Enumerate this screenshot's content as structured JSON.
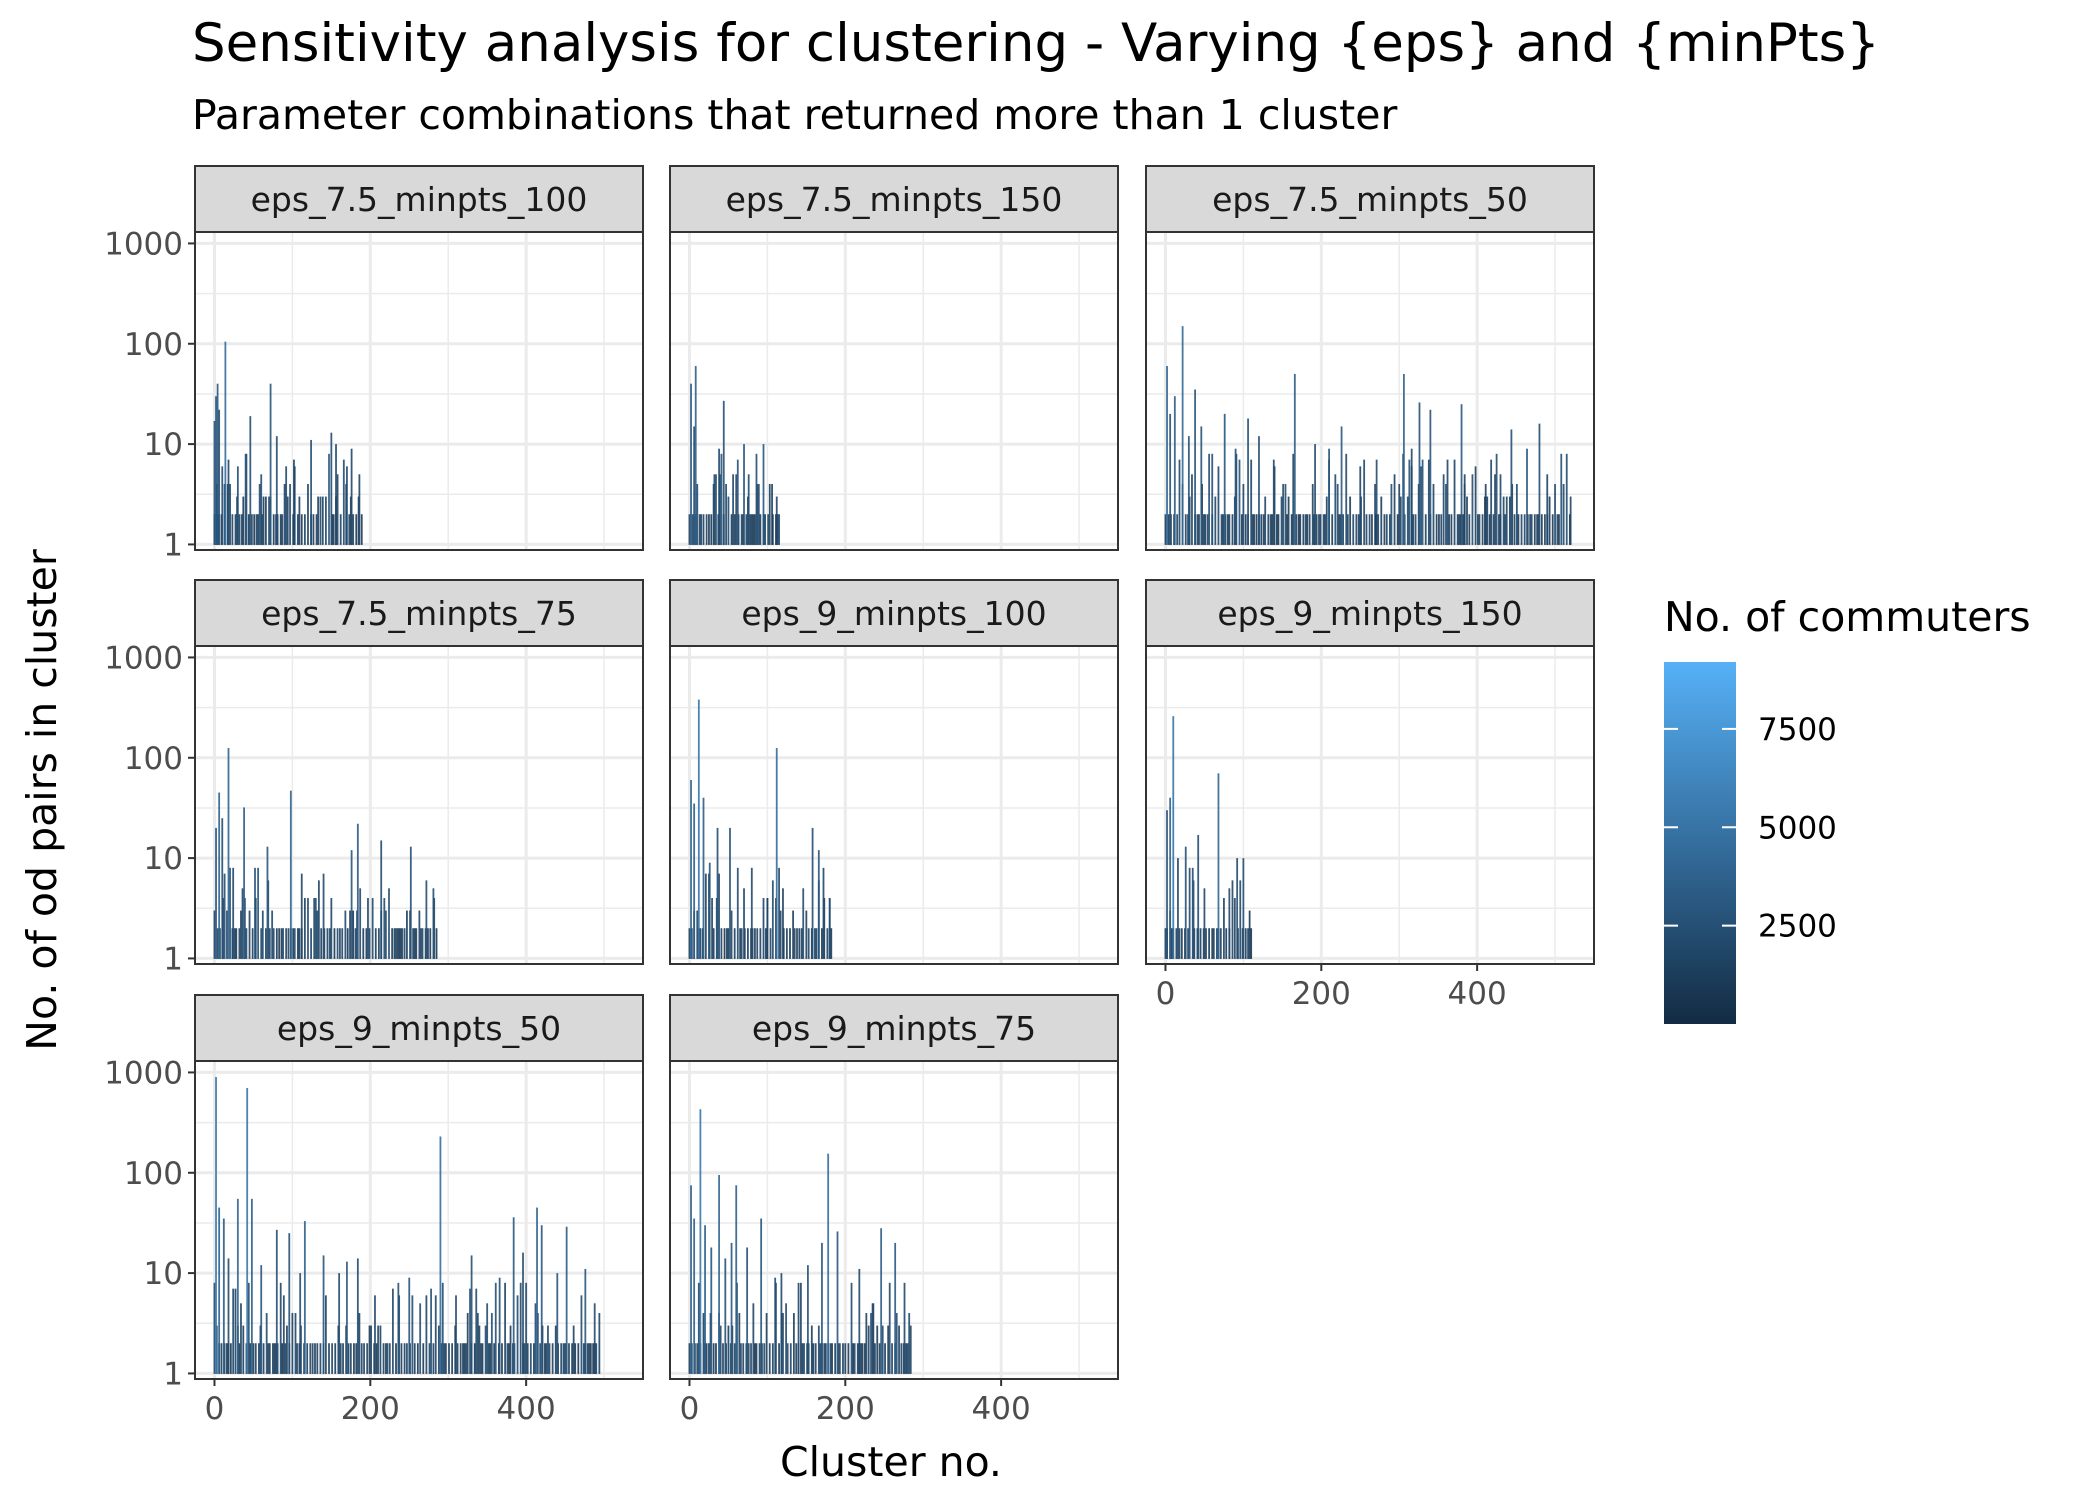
{
  "chart_data": {
    "type": "bar",
    "title": "Sensitivity analysis for clustering - Varying {eps} and {minPts}",
    "subtitle": "Parameter combinations that returned more than 1 cluster",
    "xlabel": "Cluster no.",
    "ylabel": "No. of od pairs in cluster",
    "y_scale": "log10",
    "ylim": [
      0.88,
      1300
    ],
    "xlim": [
      -25,
      550
    ],
    "x_ticks": [
      0,
      200,
      400
    ],
    "y_ticks": [
      1,
      10,
      100,
      1000
    ],
    "y_tick_labels": [
      "1",
      "10",
      "100",
      "1000"
    ],
    "x_tick_labels": [
      "0",
      "200",
      "400"
    ],
    "grid": true,
    "facet_layout": {
      "ncol": 3,
      "nrow": 3
    },
    "legend": {
      "title": "No. of commuters",
      "placement": "right",
      "type": "colorbar",
      "range": [
        0,
        9200
      ],
      "ticks": [
        2500,
        5000,
        7500
      ],
      "tick_labels": [
        "2500",
        "5000",
        "7500"
      ],
      "low_color": "#132b43",
      "high_color": "#56b1f7"
    },
    "panels": [
      {
        "label": "eps_7.5_minpts_100",
        "clusters": 190,
        "peaks": [
          {
            "x": 0,
            "y": 17
          },
          {
            "x": 2,
            "y": 30
          },
          {
            "x": 4,
            "y": 40
          },
          {
            "x": 6,
            "y": 22
          },
          {
            "x": 10,
            "y": 6
          },
          {
            "x": 14,
            "y": 105
          },
          {
            "x": 18,
            "y": 7
          },
          {
            "x": 30,
            "y": 6
          },
          {
            "x": 40,
            "y": 8
          },
          {
            "x": 46,
            "y": 19
          },
          {
            "x": 60,
            "y": 5
          },
          {
            "x": 72,
            "y": 40
          },
          {
            "x": 80,
            "y": 12
          },
          {
            "x": 92,
            "y": 6
          },
          {
            "x": 102,
            "y": 7
          },
          {
            "x": 124,
            "y": 11
          },
          {
            "x": 150,
            "y": 13
          },
          {
            "x": 156,
            "y": 10
          },
          {
            "x": 170,
            "y": 6
          },
          {
            "x": 176,
            "y": 9
          },
          {
            "x": 186,
            "y": 5
          }
        ]
      },
      {
        "label": "eps_7.5_minpts_150",
        "clusters": 115,
        "peaks": [
          {
            "x": 2,
            "y": 40
          },
          {
            "x": 8,
            "y": 60
          },
          {
            "x": 6,
            "y": 15
          },
          {
            "x": 32,
            "y": 5
          },
          {
            "x": 38,
            "y": 9
          },
          {
            "x": 44,
            "y": 27
          },
          {
            "x": 56,
            "y": 5
          },
          {
            "x": 62,
            "y": 7
          },
          {
            "x": 70,
            "y": 10
          },
          {
            "x": 76,
            "y": 5
          },
          {
            "x": 86,
            "y": 8
          },
          {
            "x": 95,
            "y": 10
          },
          {
            "x": 106,
            "y": 4
          },
          {
            "x": 112,
            "y": 3
          }
        ]
      },
      {
        "label": "eps_7.5_minpts_50",
        "clusters": 520,
        "peaks": [
          {
            "x": 2,
            "y": 60
          },
          {
            "x": 6,
            "y": 20
          },
          {
            "x": 12,
            "y": 30
          },
          {
            "x": 22,
            "y": 150
          },
          {
            "x": 30,
            "y": 12
          },
          {
            "x": 38,
            "y": 35
          },
          {
            "x": 46,
            "y": 15
          },
          {
            "x": 60,
            "y": 8
          },
          {
            "x": 76,
            "y": 20
          },
          {
            "x": 90,
            "y": 9
          },
          {
            "x": 106,
            "y": 18
          },
          {
            "x": 120,
            "y": 12
          },
          {
            "x": 140,
            "y": 6
          },
          {
            "x": 166,
            "y": 50
          },
          {
            "x": 192,
            "y": 10
          },
          {
            "x": 210,
            "y": 9
          },
          {
            "x": 226,
            "y": 15
          },
          {
            "x": 250,
            "y": 6
          },
          {
            "x": 270,
            "y": 2
          },
          {
            "x": 306,
            "y": 50
          },
          {
            "x": 316,
            "y": 9
          },
          {
            "x": 326,
            "y": 26
          },
          {
            "x": 340,
            "y": 22
          },
          {
            "x": 380,
            "y": 25
          },
          {
            "x": 384,
            "y": 5
          },
          {
            "x": 410,
            "y": 3
          },
          {
            "x": 430,
            "y": 5
          },
          {
            "x": 444,
            "y": 14
          },
          {
            "x": 464,
            "y": 9
          },
          {
            "x": 480,
            "y": 16
          },
          {
            "x": 490,
            "y": 5
          },
          {
            "x": 520,
            "y": 3
          }
        ]
      },
      {
        "label": "eps_7.5_minpts_75",
        "clusters": 285,
        "peaks": [
          {
            "x": 2,
            "y": 20
          },
          {
            "x": 6,
            "y": 45
          },
          {
            "x": 10,
            "y": 25
          },
          {
            "x": 18,
            "y": 125
          },
          {
            "x": 24,
            "y": 8
          },
          {
            "x": 38,
            "y": 32
          },
          {
            "x": 52,
            "y": 8
          },
          {
            "x": 68,
            "y": 13
          },
          {
            "x": 98,
            "y": 47
          },
          {
            "x": 112,
            "y": 7
          },
          {
            "x": 140,
            "y": 7
          },
          {
            "x": 176,
            "y": 12
          },
          {
            "x": 184,
            "y": 22
          },
          {
            "x": 214,
            "y": 15
          },
          {
            "x": 252,
            "y": 13
          },
          {
            "x": 272,
            "y": 6
          },
          {
            "x": 282,
            "y": 4
          }
        ]
      },
      {
        "label": "eps_9_minpts_100",
        "clusters": 185,
        "peaks": [
          {
            "x": 2,
            "y": 60
          },
          {
            "x": 6,
            "y": 35
          },
          {
            "x": 12,
            "y": 380
          },
          {
            "x": 18,
            "y": 40
          },
          {
            "x": 26,
            "y": 9
          },
          {
            "x": 36,
            "y": 20
          },
          {
            "x": 52,
            "y": 20
          },
          {
            "x": 70,
            "y": 5
          },
          {
            "x": 80,
            "y": 8
          },
          {
            "x": 100,
            "y": 4
          },
          {
            "x": 112,
            "y": 125
          },
          {
            "x": 120,
            "y": 5
          },
          {
            "x": 158,
            "y": 20
          },
          {
            "x": 166,
            "y": 12
          },
          {
            "x": 172,
            "y": 8
          },
          {
            "x": 180,
            "y": 4
          }
        ]
      },
      {
        "label": "eps_9_minpts_150",
        "clusters": 112,
        "peaks": [
          {
            "x": 2,
            "y": 30
          },
          {
            "x": 6,
            "y": 40
          },
          {
            "x": 10,
            "y": 260
          },
          {
            "x": 16,
            "y": 10
          },
          {
            "x": 26,
            "y": 13
          },
          {
            "x": 36,
            "y": 6
          },
          {
            "x": 42,
            "y": 17
          },
          {
            "x": 50,
            "y": 5
          },
          {
            "x": 68,
            "y": 70
          },
          {
            "x": 82,
            "y": 5
          },
          {
            "x": 92,
            "y": 10
          },
          {
            "x": 100,
            "y": 10
          },
          {
            "x": 108,
            "y": 3
          }
        ]
      },
      {
        "label": "eps_9_minpts_50",
        "clusters": 495,
        "peaks": [
          {
            "x": 2,
            "y": 900
          },
          {
            "x": 6,
            "y": 45
          },
          {
            "x": 12,
            "y": 35
          },
          {
            "x": 18,
            "y": 14
          },
          {
            "x": 30,
            "y": 55
          },
          {
            "x": 42,
            "y": 700
          },
          {
            "x": 48,
            "y": 55
          },
          {
            "x": 60,
            "y": 12
          },
          {
            "x": 80,
            "y": 27
          },
          {
            "x": 96,
            "y": 25
          },
          {
            "x": 110,
            "y": 10
          },
          {
            "x": 116,
            "y": 33
          },
          {
            "x": 140,
            "y": 15
          },
          {
            "x": 160,
            "y": 10
          },
          {
            "x": 170,
            "y": 13
          },
          {
            "x": 184,
            "y": 14
          },
          {
            "x": 206,
            "y": 6
          },
          {
            "x": 236,
            "y": 8
          },
          {
            "x": 250,
            "y": 9
          },
          {
            "x": 290,
            "y": 230
          },
          {
            "x": 310,
            "y": 6
          },
          {
            "x": 330,
            "y": 15
          },
          {
            "x": 350,
            "y": 5
          },
          {
            "x": 366,
            "y": 9
          },
          {
            "x": 384,
            "y": 36
          },
          {
            "x": 396,
            "y": 16
          },
          {
            "x": 414,
            "y": 45
          },
          {
            "x": 420,
            "y": 30
          },
          {
            "x": 440,
            "y": 10
          },
          {
            "x": 452,
            "y": 29
          },
          {
            "x": 476,
            "y": 11
          },
          {
            "x": 488,
            "y": 5
          }
        ]
      },
      {
        "label": "eps_9_minpts_75",
        "clusters": 285,
        "peaks": [
          {
            "x": 2,
            "y": 75
          },
          {
            "x": 6,
            "y": 35
          },
          {
            "x": 14,
            "y": 430
          },
          {
            "x": 20,
            "y": 30
          },
          {
            "x": 28,
            "y": 18
          },
          {
            "x": 38,
            "y": 95
          },
          {
            "x": 46,
            "y": 14
          },
          {
            "x": 54,
            "y": 20
          },
          {
            "x": 60,
            "y": 75
          },
          {
            "x": 74,
            "y": 18
          },
          {
            "x": 92,
            "y": 35
          },
          {
            "x": 110,
            "y": 9
          },
          {
            "x": 118,
            "y": 10
          },
          {
            "x": 140,
            "y": 8
          },
          {
            "x": 152,
            "y": 12
          },
          {
            "x": 170,
            "y": 20
          },
          {
            "x": 178,
            "y": 155
          },
          {
            "x": 190,
            "y": 26
          },
          {
            "x": 218,
            "y": 11
          },
          {
            "x": 236,
            "y": 5
          },
          {
            "x": 246,
            "y": 28
          },
          {
            "x": 264,
            "y": 20
          },
          {
            "x": 276,
            "y": 8
          },
          {
            "x": 284,
            "y": 3
          }
        ]
      }
    ]
  }
}
